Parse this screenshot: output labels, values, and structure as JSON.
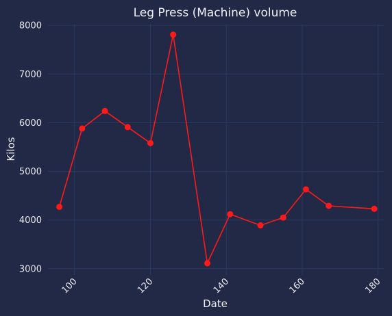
{
  "chart_data": {
    "type": "line",
    "title": "Leg Press (Machine) volume",
    "xlabel": "Date",
    "ylabel": "Kilos",
    "xlim": [
      93,
      181.5
    ],
    "ylim": [
      2870,
      8030
    ],
    "xticks": [
      100,
      120,
      140,
      160,
      180
    ],
    "yticks": [
      3000,
      4000,
      5000,
      6000,
      7000,
      8000
    ],
    "grid": true,
    "series": [
      {
        "color": "#ff1a1a",
        "points": [
          {
            "x": 96,
            "y": 4270
          },
          {
            "x": 102,
            "y": 5880
          },
          {
            "x": 108,
            "y": 6240
          },
          {
            "x": 114,
            "y": 5910
          },
          {
            "x": 120,
            "y": 5580
          },
          {
            "x": 126,
            "y": 7810
          },
          {
            "x": 135,
            "y": 3110
          },
          {
            "x": 141,
            "y": 4120
          },
          {
            "x": 149,
            "y": 3890
          },
          {
            "x": 155,
            "y": 4050
          },
          {
            "x": 161,
            "y": 4630
          },
          {
            "x": 167,
            "y": 4290
          },
          {
            "x": 179,
            "y": 4230
          }
        ]
      }
    ]
  },
  "colors": {
    "background": "#212946",
    "grid": "#2c3a63",
    "text": "#eef0f5"
  }
}
